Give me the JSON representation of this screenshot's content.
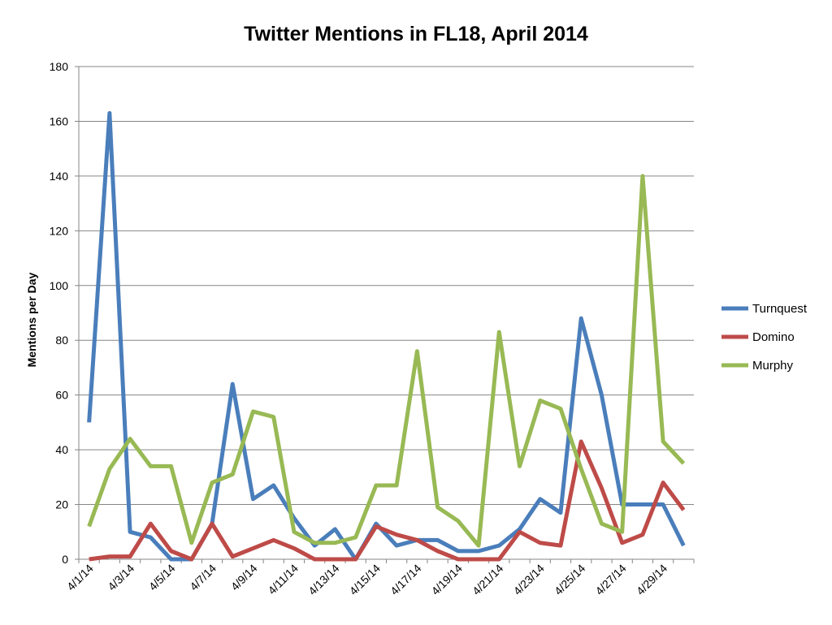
{
  "chart_data": {
    "type": "line",
    "title": "Twitter Mentions in FL18, April 2014",
    "xlabel": "",
    "ylabel": "Mentions per Day",
    "ylim": [
      0,
      180
    ],
    "yticks": [
      0,
      20,
      40,
      60,
      80,
      100,
      120,
      140,
      160,
      180
    ],
    "grid": true,
    "legend_position": "right",
    "x": [
      "4/1/14",
      "4/2/14",
      "4/3/14",
      "4/4/14",
      "4/5/14",
      "4/6/14",
      "4/7/14",
      "4/8/14",
      "4/9/14",
      "4/10/14",
      "4/11/14",
      "4/12/14",
      "4/13/14",
      "4/14/14",
      "4/15/14",
      "4/16/14",
      "4/17/14",
      "4/18/14",
      "4/19/14",
      "4/20/14",
      "4/21/14",
      "4/22/14",
      "4/23/14",
      "4/24/14",
      "4/25/14",
      "4/26/14",
      "4/27/14",
      "4/28/14",
      "4/29/14",
      "4/30/14"
    ],
    "x_tick_labels": [
      "4/1/14",
      "4/3/14",
      "4/5/14",
      "4/7/14",
      "4/9/14",
      "4/11/14",
      "4/13/14",
      "4/15/14",
      "4/17/14",
      "4/19/14",
      "4/21/14",
      "4/23/14",
      "4/25/14",
      "4/27/14",
      "4/29/14"
    ],
    "series": [
      {
        "name": "Turnquest",
        "color": "#4a7ebb",
        "values": [
          50,
          163,
          10,
          8,
          0,
          0,
          13,
          64,
          22,
          27,
          15,
          5,
          11,
          0,
          13,
          5,
          7,
          7,
          3,
          3,
          5,
          11,
          22,
          17,
          88,
          60,
          20,
          20,
          20,
          5
        ]
      },
      {
        "name": "Domino",
        "color": "#be4b48",
        "values": [
          0,
          1,
          1,
          13,
          3,
          0,
          13,
          1,
          4,
          7,
          4,
          0,
          0,
          0,
          12,
          9,
          7,
          3,
          0,
          0,
          0,
          10,
          6,
          5,
          43,
          26,
          6,
          9,
          28,
          18
        ]
      },
      {
        "name": "Murphy",
        "color": "#98b954",
        "values": [
          12,
          33,
          44,
          34,
          34,
          6,
          28,
          31,
          54,
          52,
          10,
          6,
          6,
          8,
          27,
          27,
          76,
          19,
          14,
          5,
          83,
          34,
          58,
          55,
          33,
          13,
          10,
          140,
          43,
          35
        ]
      }
    ]
  }
}
